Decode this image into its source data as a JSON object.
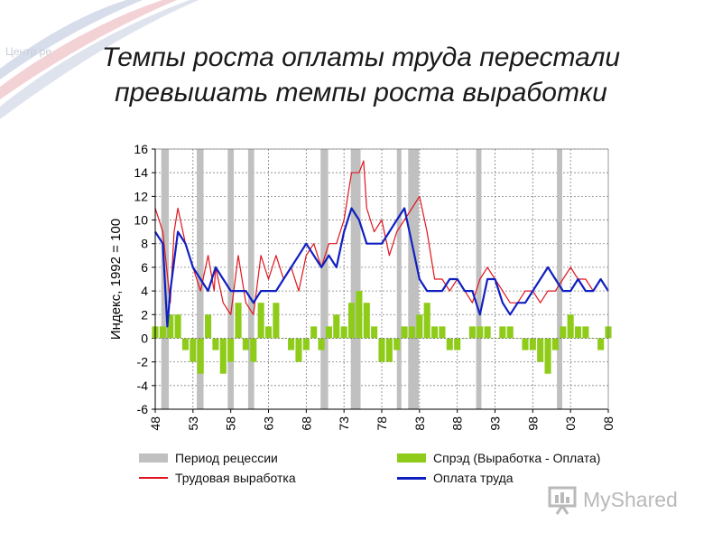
{
  "corner_label": "Центр ре",
  "title_line1": "Темпы роста оплаты труда перестали",
  "title_line2": "превышать темпы роста выработки",
  "watermark": "MyShared",
  "colors": {
    "recession": "#c0c0c0",
    "spread": "#8fcc1a",
    "productivity": "#e0141e",
    "wages": "#1020c0",
    "grid": "#808080"
  },
  "legend": [
    {
      "label": "Период рецессии",
      "kind": "box",
      "color": "#c0c0c0"
    },
    {
      "label": "Спрэд (Выработка - Оплата)",
      "kind": "box",
      "color": "#8fcc1a"
    },
    {
      "label": "Трудовая выработка",
      "kind": "line",
      "color": "#e0141e"
    },
    {
      "label": "Оплата труда",
      "kind": "line",
      "color": "#1020c0"
    }
  ],
  "chart_data": {
    "type": "line",
    "title": "",
    "xlabel": "",
    "ylabel": "Индекс, 1992 = 100",
    "xlim": [
      1948,
      2008
    ],
    "ylim": [
      -6,
      16
    ],
    "x_ticks": [
      "48",
      "53",
      "58",
      "63",
      "68",
      "73",
      "78",
      "83",
      "88",
      "93",
      "98",
      "03",
      "08"
    ],
    "y_ticks": [
      "16",
      "14",
      "12",
      "10",
      "8",
      "6",
      "4",
      "2",
      "0",
      "-2",
      "-4",
      "-6"
    ],
    "grid": true,
    "legend_position": "bottom",
    "recessions": [
      [
        1948.8,
        1949.8
      ],
      [
        1953.5,
        1954.4
      ],
      [
        1957.6,
        1958.4
      ],
      [
        1960.3,
        1961.1
      ],
      [
        1969.9,
        1970.9
      ],
      [
        1973.9,
        1975.2
      ],
      [
        1980.0,
        1980.6
      ],
      [
        1981.5,
        1982.9
      ],
      [
        1990.5,
        1991.2
      ],
      [
        2001.2,
        2001.9
      ]
    ],
    "series": [
      {
        "name": "Трудовая выработка",
        "x": [
          1948,
          1949,
          1950,
          1950.5,
          1951,
          1952,
          1953,
          1954,
          1955,
          1955.8,
          1956,
          1957,
          1958,
          1959,
          1960,
          1961,
          1962,
          1963,
          1964,
          1965,
          1966,
          1967,
          1968,
          1969,
          1970,
          1971,
          1972,
          1973,
          1974,
          1975,
          1975.6,
          1976,
          1977,
          1978,
          1979,
          1980,
          1981,
          1982,
          1983,
          1984,
          1985,
          1986,
          1987,
          1988,
          1989,
          1990,
          1991,
          1992,
          1993,
          1994,
          1995,
          1996,
          1997,
          1998,
          1999,
          2000,
          2001,
          2002,
          2003,
          2004,
          2005,
          2006,
          2007,
          2008
        ],
        "y": [
          11,
          9,
          3,
          9,
          11,
          8,
          6,
          4,
          7,
          4,
          6,
          3,
          2,
          7,
          3,
          2,
          7,
          5,
          7,
          5,
          6,
          4,
          7,
          8,
          6,
          8,
          8,
          10,
          14,
          14,
          15,
          11,
          9,
          10,
          7,
          9,
          10,
          11,
          12,
          9,
          5,
          5,
          4,
          5,
          4,
          3,
          5,
          6,
          5,
          4,
          3,
          3,
          4,
          4,
          3,
          4,
          4,
          5,
          6,
          5,
          5,
          4,
          5,
          4
        ]
      },
      {
        "name": "Оплата труда",
        "x": [
          1948,
          1949,
          1949.6,
          1950,
          1951,
          1952,
          1953,
          1954,
          1955,
          1956,
          1957,
          1958,
          1959,
          1960,
          1961,
          1962,
          1963,
          1964,
          1965,
          1966,
          1967,
          1968,
          1969,
          1970,
          1971,
          1972,
          1973,
          1974,
          1975,
          1976,
          1977,
          1978,
          1979,
          1980,
          1981,
          1982,
          1983,
          1984,
          1985,
          1986,
          1987,
          1988,
          1989,
          1990,
          1991,
          1992,
          1993,
          1994,
          1995,
          1996,
          1997,
          1998,
          1999,
          2000,
          2001,
          2002,
          2003,
          2004,
          2005,
          2006,
          2007,
          2008
        ],
        "y": [
          9,
          8,
          1,
          4,
          9,
          8,
          6,
          5,
          4,
          6,
          5,
          4,
          4,
          4,
          3,
          4,
          4,
          4,
          5,
          6,
          7,
          8,
          7,
          6,
          7,
          6,
          9,
          11,
          10,
          8,
          8,
          8,
          9,
          10,
          11,
          8,
          5,
          4,
          4,
          4,
          5,
          5,
          4,
          4,
          2,
          5,
          5,
          3,
          2,
          3,
          3,
          4,
          5,
          6,
          5,
          4,
          4,
          5,
          4,
          4,
          5,
          4
        ]
      },
      {
        "name": "Спрэд (Выработка - Оплата)",
        "x": [
          1948,
          1949,
          1950,
          1951,
          1952,
          1953,
          1954,
          1955,
          1956,
          1957,
          1958,
          1959,
          1960,
          1961,
          1962,
          1963,
          1964,
          1965,
          1966,
          1967,
          1968,
          1969,
          1970,
          1971,
          1972,
          1973,
          1974,
          1975,
          1976,
          1977,
          1978,
          1979,
          1980,
          1981,
          1982,
          1983,
          1984,
          1985,
          1986,
          1987,
          1988,
          1989,
          1990,
          1991,
          1992,
          1993,
          1994,
          1995,
          1996,
          1997,
          1998,
          1999,
          2000,
          2001,
          2002,
          2003,
          2004,
          2005,
          2006,
          2007,
          2008
        ],
        "y": [
          1,
          1,
          2,
          2,
          -1,
          -2,
          -3,
          2,
          -1,
          -3,
          -2,
          3,
          -1,
          -2,
          3,
          1,
          3,
          0,
          -1,
          -2,
          -1,
          1,
          -1,
          1,
          2,
          1,
          3,
          4,
          3,
          1,
          -2,
          -2,
          -1,
          1,
          1,
          2,
          3,
          1,
          1,
          -1,
          -1,
          0,
          1,
          1,
          1,
          0,
          1,
          1,
          0,
          -1,
          -1,
          -2,
          -3,
          -1,
          1,
          2,
          1,
          1,
          0,
          -1,
          1
        ]
      }
    ]
  }
}
